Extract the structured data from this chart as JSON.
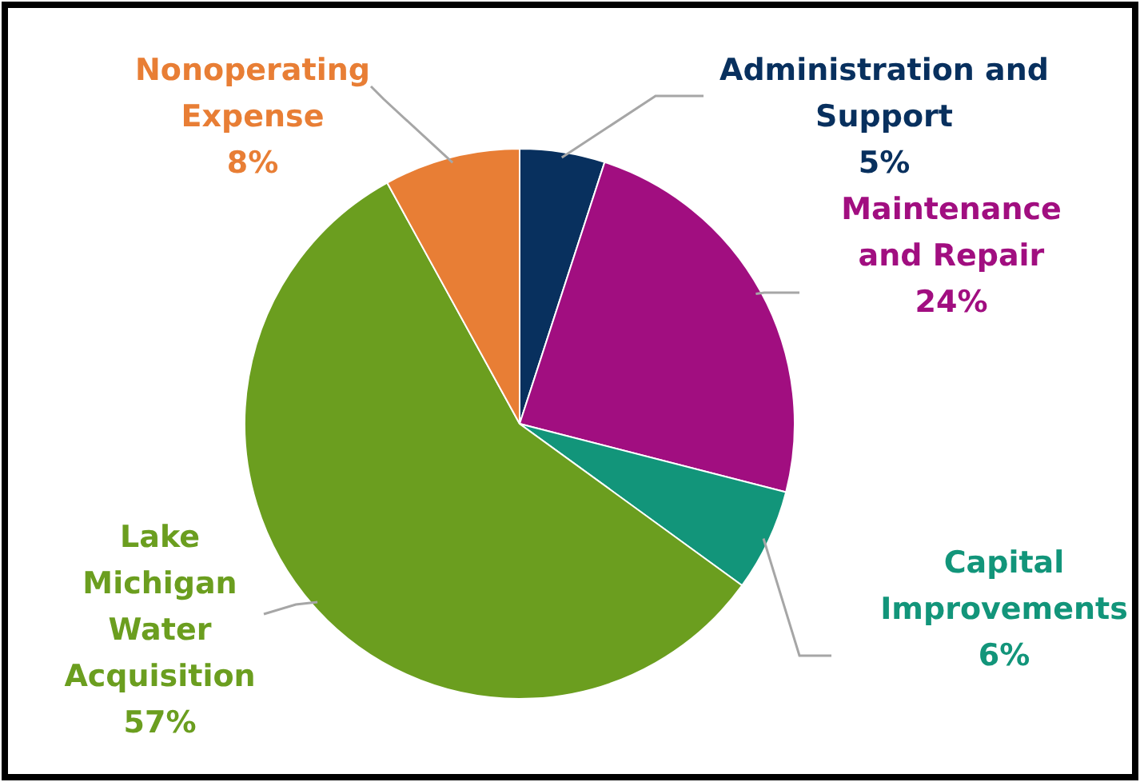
{
  "chart_data": {
    "type": "pie",
    "categories": [
      "Administration and Support",
      "Maintenance and Repair",
      "Capital Improvements",
      "Lake Michigan Water Acquisition",
      "Nonoperating Expense"
    ],
    "values": [
      5,
      24,
      6,
      57,
      8
    ],
    "value_labels": [
      "5%",
      "24%",
      "6%",
      "57%",
      "8%"
    ],
    "colors": [
      "#08305e",
      "#a10e80",
      "#12957a",
      "#6b9e1f",
      "#e87e35"
    ]
  }
}
